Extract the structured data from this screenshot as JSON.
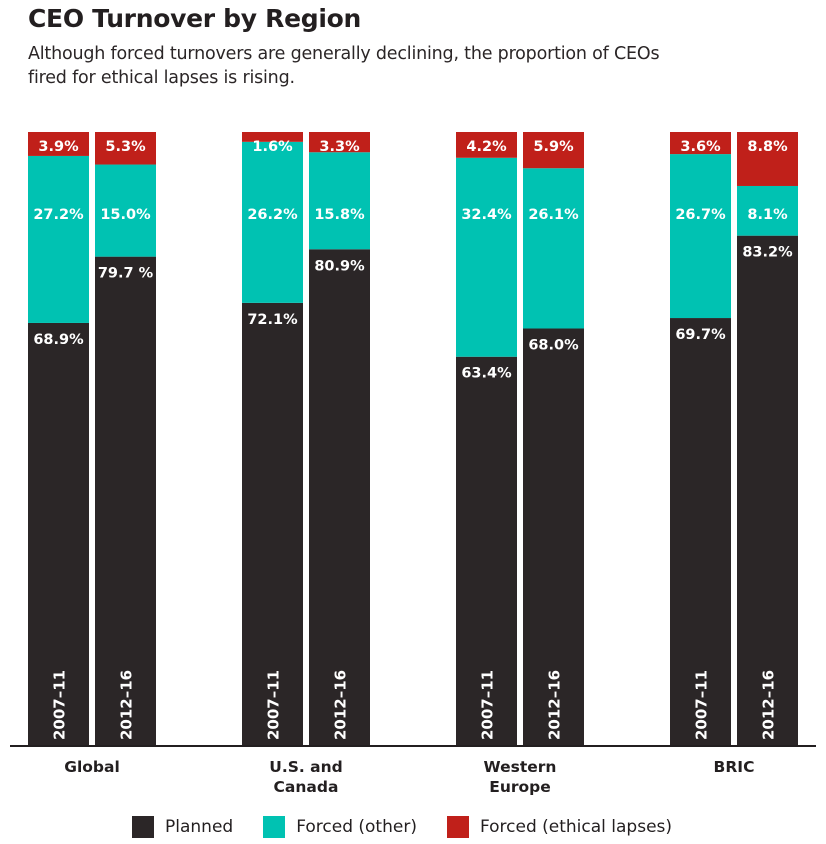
{
  "chart_data": {
    "type": "bar",
    "stacked": true,
    "title": "CEO Turnover by Region",
    "subtitle": "Although forced turnovers are generally declining, the proportion of CEOs fired for ethical lapses is rising.",
    "xlabel": "",
    "ylabel": "",
    "ylim": [
      0,
      100
    ],
    "grid": false,
    "legend_position": "bottom",
    "categories": [
      "Global",
      "U.S. and Canada",
      "Western Europe",
      "BRIC"
    ],
    "category_lines": [
      [
        "Global"
      ],
      [
        "U.S. and",
        "Canada"
      ],
      [
        "Western",
        "Europe"
      ],
      [
        "BRIC"
      ]
    ],
    "periods": [
      "2007–11",
      "2012–16"
    ],
    "series": [
      {
        "name": "Planned",
        "color": "#2b2627",
        "values": [
          [
            68.9,
            79.7
          ],
          [
            72.1,
            80.9
          ],
          [
            63.4,
            68.0
          ],
          [
            69.7,
            83.2
          ]
        ],
        "labels": [
          [
            "68.9%",
            "79.7 %"
          ],
          [
            "72.1%",
            "80.9%"
          ],
          [
            "63.4%",
            "68.0%"
          ],
          [
            "69.7%",
            "83.2%"
          ]
        ]
      },
      {
        "name": "Forced (other)",
        "color": "#00c2b2",
        "values": [
          [
            27.2,
            15.0
          ],
          [
            26.2,
            15.8
          ],
          [
            32.4,
            26.1
          ],
          [
            26.7,
            8.1
          ]
        ],
        "labels": [
          [
            "27.2%",
            "15.0%"
          ],
          [
            "26.2%",
            "15.8%"
          ],
          [
            "32.4%",
            "26.1%"
          ],
          [
            "26.7%",
            "8.1%"
          ]
        ]
      },
      {
        "name": "Forced (ethical lapses)",
        "color": "#c0201a",
        "values": [
          [
            3.9,
            5.3
          ],
          [
            1.6,
            3.3
          ],
          [
            4.2,
            5.9
          ],
          [
            3.6,
            8.8
          ]
        ],
        "labels": [
          [
            "3.9%",
            "5.3%"
          ],
          [
            "1.6%",
            "3.3%"
          ],
          [
            "4.2%",
            "5.9%"
          ],
          [
            "3.6%",
            "8.8%"
          ]
        ]
      }
    ]
  },
  "legend": [
    {
      "label": "Planned",
      "color": "#2b2627"
    },
    {
      "label": "Forced (other)",
      "color": "#00c2b2"
    },
    {
      "label": "Forced (ethical lapses)",
      "color": "#c0201a"
    }
  ]
}
